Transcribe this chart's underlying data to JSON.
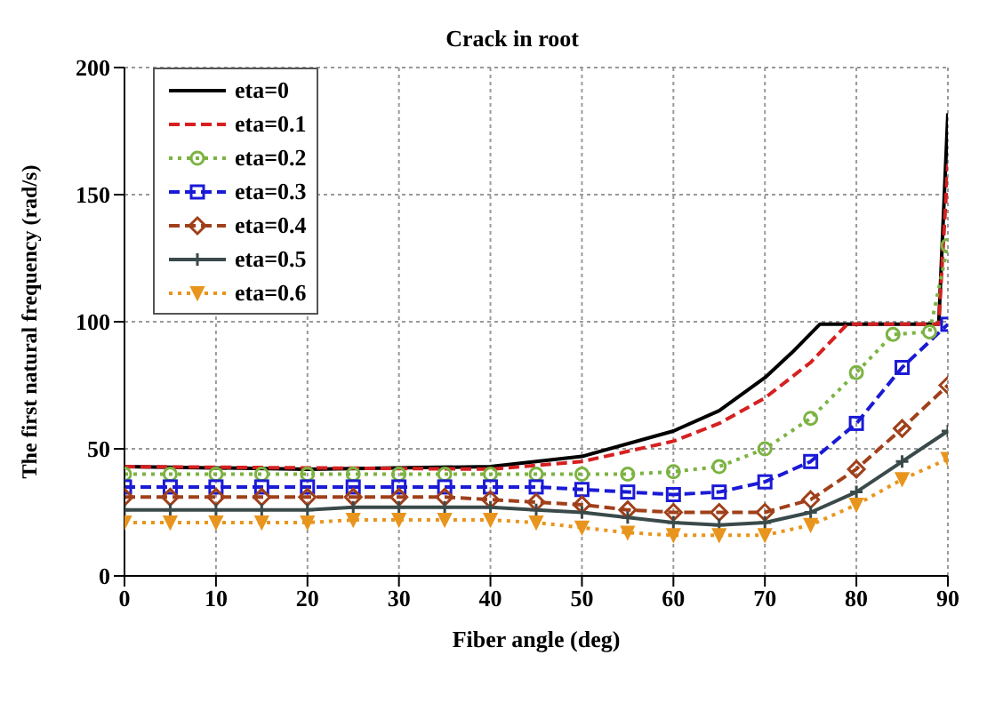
{
  "chart_data": {
    "type": "line",
    "title": "Crack in root",
    "xlabel": "Fiber angle (deg)",
    "ylabel": "The first natural frequency (rad/s)",
    "xlim": [
      0,
      90
    ],
    "xticks": [
      0,
      10,
      20,
      30,
      40,
      50,
      60,
      70,
      80,
      90
    ],
    "ylim": [
      0,
      200
    ],
    "yticks": [
      0,
      50,
      100,
      150,
      200
    ],
    "grid": true,
    "legend": "top left",
    "series": [
      {
        "name": "eta=0",
        "color": "#000000",
        "marker": "none",
        "line_style": "solid",
        "x": [
          0,
          20,
          40,
          50,
          60,
          65,
          70,
          73,
          76,
          89,
          90
        ],
        "values": [
          43,
          42,
          43,
          47,
          57,
          65,
          78,
          88,
          99,
          99,
          182
        ]
      },
      {
        "name": "eta=0.1",
        "color": "#d62020",
        "marker": "none",
        "line_style": "dashed",
        "x": [
          0,
          40,
          50,
          60,
          65,
          70,
          75,
          79,
          89,
          90
        ],
        "values": [
          43,
          42,
          45,
          53,
          60,
          70,
          84,
          99,
          99,
          162
        ]
      },
      {
        "name": "eta=0.2",
        "color": "#7cb342",
        "marker": "circle",
        "line_style": "dotted",
        "x": [
          0,
          5,
          10,
          15,
          20,
          25,
          30,
          35,
          40,
          45,
          50,
          55,
          60,
          65,
          70,
          75,
          80,
          84,
          88,
          90
        ],
        "values": [
          40,
          40,
          40,
          40,
          40,
          40,
          40,
          40,
          40,
          40,
          40,
          40,
          41,
          43,
          50,
          62,
          80,
          95,
          96,
          130
        ]
      },
      {
        "name": "eta=0.3",
        "color": "#1a1ad6",
        "marker": "square",
        "line_style": "dashed",
        "x": [
          0,
          5,
          10,
          15,
          20,
          25,
          30,
          35,
          40,
          45,
          50,
          55,
          60,
          65,
          70,
          75,
          80,
          85,
          90
        ],
        "values": [
          35,
          35,
          35,
          35,
          35,
          35,
          35,
          35,
          35,
          35,
          34,
          33,
          32,
          33,
          37,
          45,
          60,
          82,
          99
        ]
      },
      {
        "name": "eta=0.4",
        "color": "#a0401a",
        "marker": "diamond",
        "line_style": "dashed",
        "x": [
          0,
          5,
          10,
          15,
          20,
          25,
          30,
          35,
          40,
          45,
          50,
          55,
          60,
          65,
          70,
          75,
          80,
          85,
          90
        ],
        "values": [
          31,
          31,
          31,
          31,
          31,
          31,
          31,
          31,
          30,
          29,
          28,
          26,
          25,
          25,
          25,
          30,
          42,
          58,
          75
        ]
      },
      {
        "name": "eta=0.5",
        "color": "#3a4a4a",
        "marker": "cross",
        "line_style": "solid",
        "x": [
          0,
          5,
          10,
          15,
          20,
          25,
          30,
          35,
          40,
          45,
          50,
          55,
          60,
          65,
          70,
          75,
          80,
          85,
          90
        ],
        "values": [
          26,
          26,
          26,
          26,
          26,
          27,
          27,
          27,
          27,
          26,
          25,
          23,
          21,
          20,
          21,
          25,
          33,
          45,
          57
        ]
      },
      {
        "name": "eta=0.6",
        "color": "#e8951e",
        "marker": "triangle",
        "line_style": "dotted",
        "x": [
          0,
          5,
          10,
          15,
          20,
          25,
          30,
          35,
          40,
          45,
          50,
          55,
          60,
          65,
          70,
          75,
          80,
          85,
          90
        ],
        "values": [
          21,
          21,
          21,
          21,
          21,
          22,
          22,
          22,
          22,
          21,
          19,
          17,
          16,
          16,
          16,
          20,
          28,
          38,
          46
        ]
      }
    ]
  }
}
